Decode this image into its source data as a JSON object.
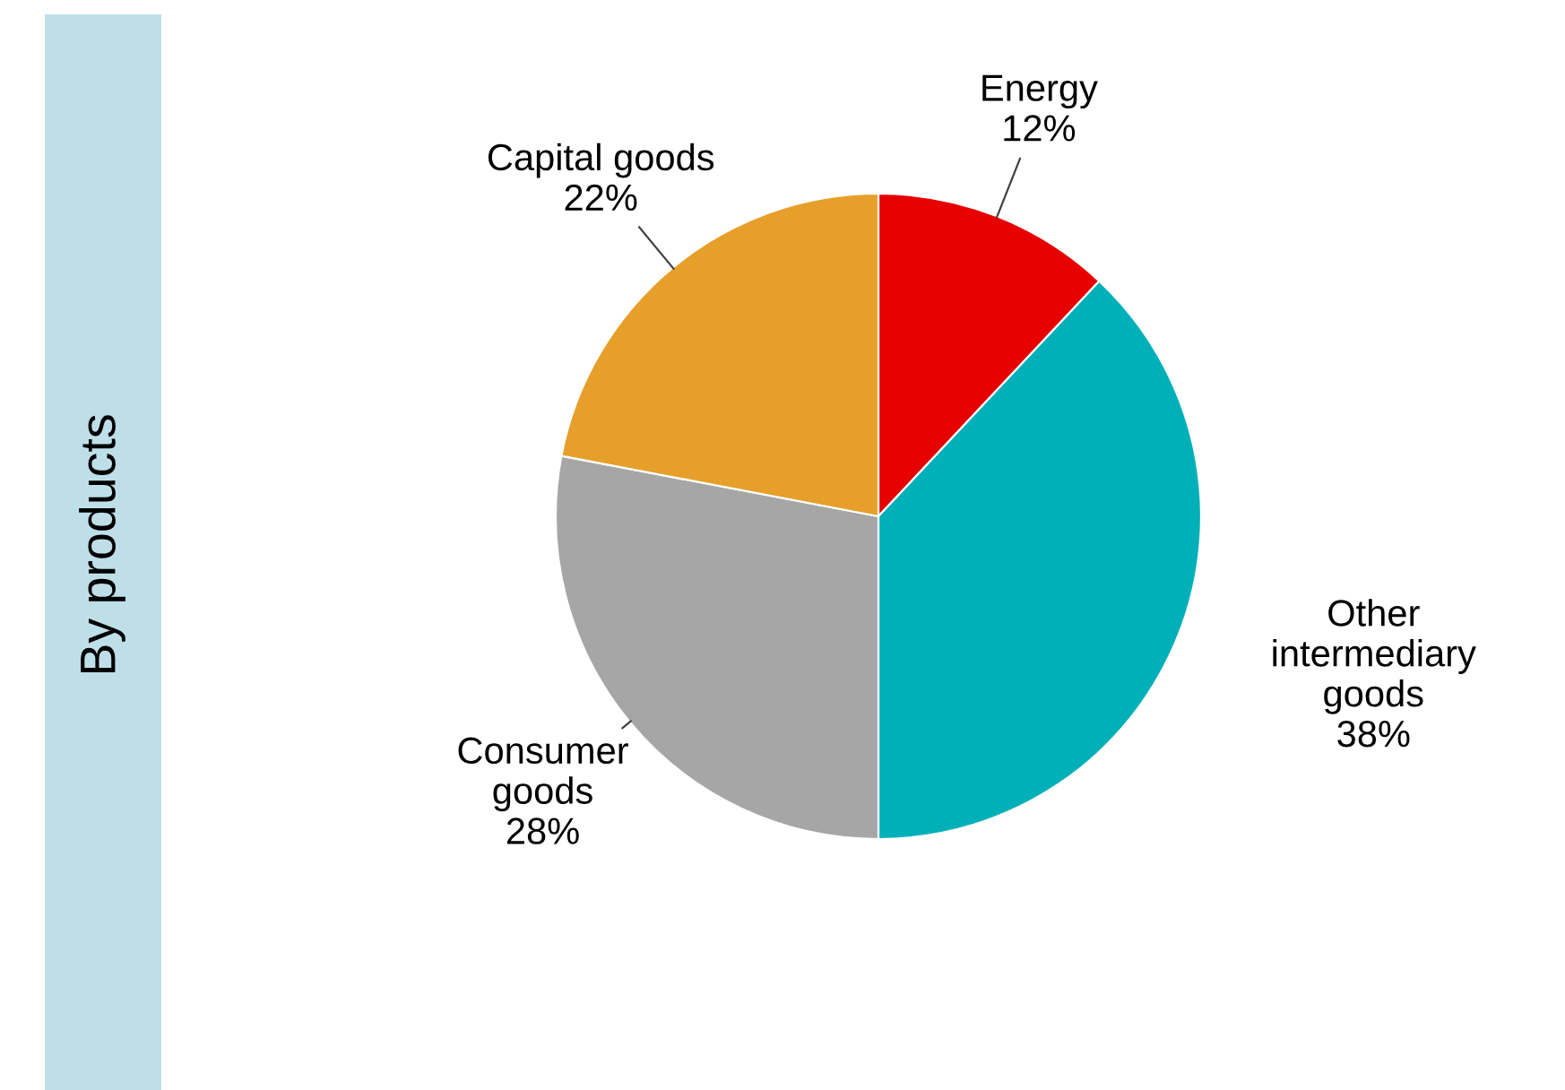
{
  "chart_data": {
    "type": "pie",
    "title": "By products",
    "categories": [
      "Energy",
      "Other intermediary goods",
      "Consumer goods",
      "Capital goods"
    ],
    "values": [
      12,
      38,
      28,
      22
    ],
    "value_labels": [
      "12%",
      "38%",
      "28%",
      "22%"
    ],
    "colors": [
      "#e60000",
      "#00b0b9",
      "#a6a6a6",
      "#e69f2a"
    ]
  }
}
